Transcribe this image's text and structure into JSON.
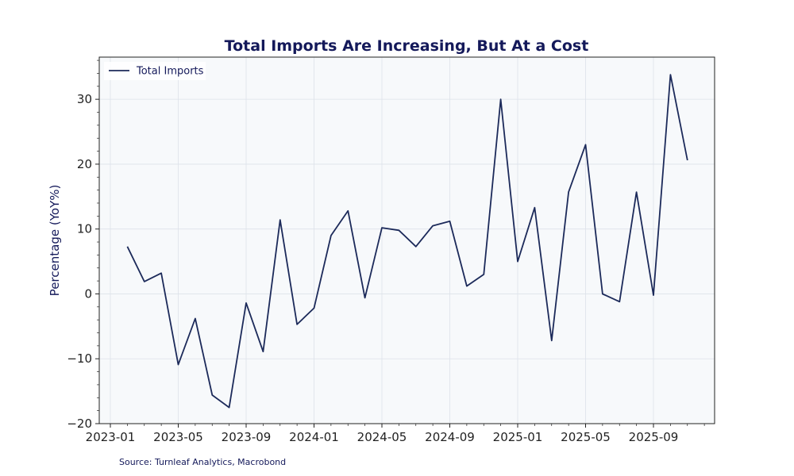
{
  "chart_data": {
    "type": "line",
    "title": "Total Imports Are Increasing, But At a Cost",
    "xlabel": "",
    "ylabel": "Percentage (YoY%)",
    "ylim": [
      -20,
      36.5
    ],
    "yticks": [
      -20,
      -10,
      0,
      10,
      20,
      30
    ],
    "ytick_labels": [
      "−20",
      "−10",
      "0",
      "10",
      "20",
      "30"
    ],
    "xticks": [
      "2023-01",
      "2023-05",
      "2023-09",
      "2024-01",
      "2024-05",
      "2024-09",
      "2025-01",
      "2025-05",
      "2025-09"
    ],
    "grid": true,
    "legend": "top-left",
    "series": [
      {
        "name": "Total Imports",
        "color": "#1c2a5a",
        "x": [
          "2023-02",
          "2023-03",
          "2023-04",
          "2023-05",
          "2023-06",
          "2023-07",
          "2023-08",
          "2023-09",
          "2023-10",
          "2023-11",
          "2023-12",
          "2024-01",
          "2024-02",
          "2024-03",
          "2024-04",
          "2024-05",
          "2024-06",
          "2024-07",
          "2024-08",
          "2024-09",
          "2024-10",
          "2024-11",
          "2024-12",
          "2025-01",
          "2025-02",
          "2025-03",
          "2025-04",
          "2025-05",
          "2025-06",
          "2025-07",
          "2025-08",
          "2025-09",
          "2025-10",
          "2025-11"
        ],
        "values": [
          7.3,
          1.9,
          3.2,
          -10.9,
          -3.8,
          -15.6,
          -17.5,
          -1.4,
          -8.9,
          11.4,
          -4.7,
          -2.2,
          9.0,
          12.8,
          -0.6,
          10.2,
          9.8,
          7.3,
          10.5,
          11.2,
          1.2,
          3.0,
          30.0,
          5.0,
          13.3,
          -7.2,
          15.7,
          23.0,
          0.0,
          -1.2,
          15.7,
          -0.2,
          33.8,
          20.6
        ]
      }
    ]
  },
  "source": "Source: Turnleaf Analytics, Macrobond"
}
